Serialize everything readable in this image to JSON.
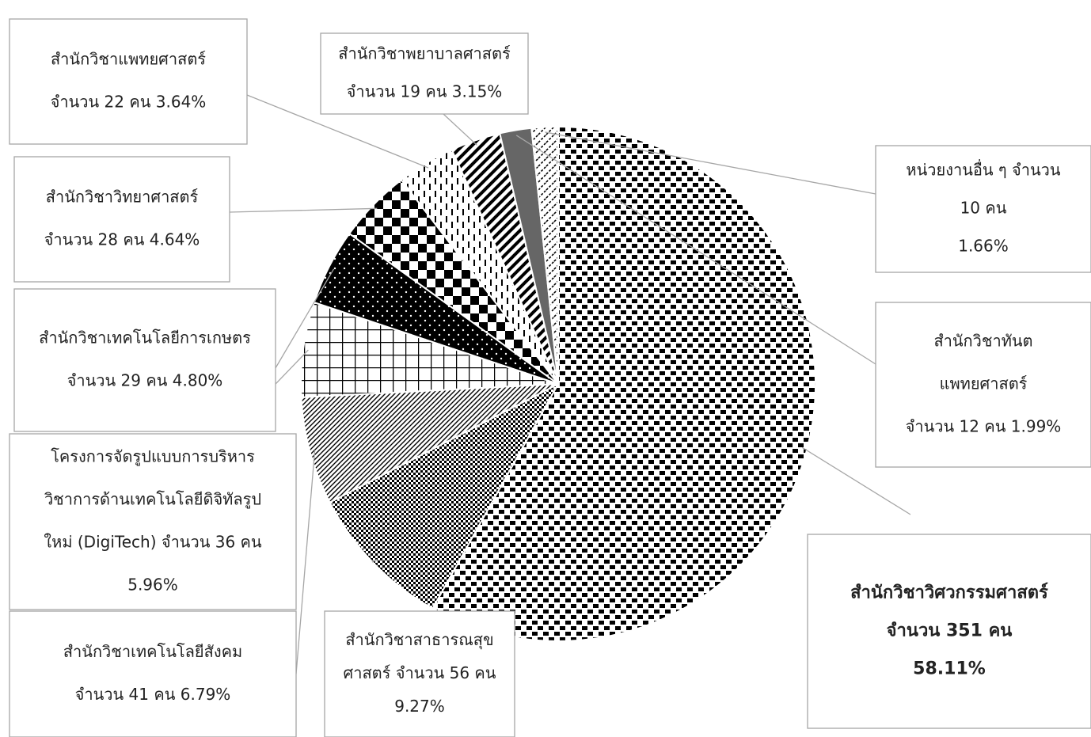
{
  "chart_data": {
    "type": "pie",
    "title": "",
    "slices": [
      {
        "id": "engineering",
        "lines": [
          "สำนักวิชาวิศวกรรมศาสตร์",
          "จำนวน 351 คน",
          "58.11%"
        ],
        "value": 351,
        "percent": 58.11,
        "pattern": "checker-small",
        "bold": true
      },
      {
        "id": "public-health",
        "lines": [
          "สำนักวิชาสาธารณสุข",
          "ศาสตร์ จำนวน 56 คน",
          "9.27%"
        ],
        "value": 56,
        "percent": 9.27,
        "pattern": "dotted-grid"
      },
      {
        "id": "social-tech",
        "lines": [
          "สำนักวิชาเทคโนโลยีสังคม",
          "จำนวน 41 คน 6.79%"
        ],
        "value": 41,
        "percent": 6.79,
        "pattern": "diagonal-fine"
      },
      {
        "id": "digitech",
        "lines": [
          "โครงการจัดรูปแบบการบริหาร",
          "วิชาการด้านเทคโนโลยีดิจิทัลรูป",
          "ใหม่ (DigiTech)  จำนวน 36 คน",
          "5.96%"
        ],
        "value": 36,
        "percent": 5.96,
        "pattern": "grid"
      },
      {
        "id": "agri-tech",
        "lines": [
          "สำนักวิชาเทคโนโลยีการเกษตร",
          "จำนวน 29 คน 4.80%"
        ],
        "value": 29,
        "percent": 4.8,
        "pattern": "black-dots"
      },
      {
        "id": "science",
        "lines": [
          "สำนักวิชาวิทยาศาสตร์",
          "จำนวน 28 คน 4.64%"
        ],
        "value": 28,
        "percent": 4.64,
        "pattern": "checker-large"
      },
      {
        "id": "medicine",
        "lines": [
          "สำนักวิชาแพทยศาสตร์",
          "จำนวน 22 คน 3.64%"
        ],
        "value": 22,
        "percent": 3.64,
        "pattern": "dashes"
      },
      {
        "id": "nursing",
        "lines": [
          "สำนักวิชาพยาบาลศาสตร์",
          "จำนวน 19 คน 3.15%"
        ],
        "value": 19,
        "percent": 3.15,
        "pattern": "stripes"
      },
      {
        "id": "dentistry",
        "lines": [
          "สำนักวิชาทันต",
          "แพทยศาสตร์",
          "จำนวน 12 คน 1.99%"
        ],
        "value": 12,
        "percent": 1.99,
        "pattern": "solid-gray"
      },
      {
        "id": "other",
        "lines": [
          "หน่วยงานอื่น ๆ  จำนวน",
          "10 คน",
          "1.66%"
        ],
        "value": 10,
        "percent": 1.66,
        "pattern": "light-stripes"
      }
    ],
    "legend": "none",
    "colors": {
      "ink": "#000000",
      "gray": "#666666",
      "border": "#a6a6a6"
    }
  }
}
